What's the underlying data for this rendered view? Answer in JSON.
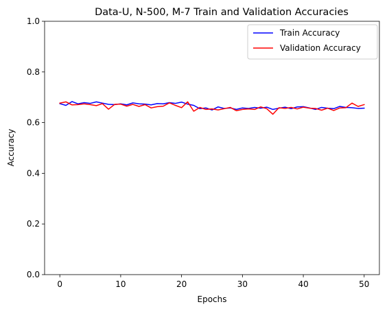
{
  "chart_data": {
    "type": "line",
    "title": "Data-U, N-500, M-7 Train and Validation Accuracies",
    "xlabel": "Epochs",
    "ylabel": "Accuracy",
    "xlim": [
      -2.5,
      52.5
    ],
    "ylim": [
      0.0,
      1.0
    ],
    "xticks": [
      0,
      10,
      20,
      30,
      40,
      50
    ],
    "yticks": [
      0.0,
      0.2,
      0.4,
      0.6,
      0.8,
      1.0
    ],
    "xtick_labels": [
      "0",
      "10",
      "20",
      "30",
      "40",
      "50"
    ],
    "ytick_labels": [
      "0.0",
      "0.2",
      "0.4",
      "0.6",
      "0.8",
      "1.0"
    ],
    "grid": false,
    "legend_position": "top-right",
    "x": [
      0,
      1,
      2,
      3,
      4,
      5,
      6,
      7,
      8,
      9,
      10,
      11,
      12,
      13,
      14,
      15,
      16,
      17,
      18,
      19,
      20,
      21,
      22,
      23,
      24,
      25,
      26,
      27,
      28,
      29,
      30,
      31,
      32,
      33,
      34,
      35,
      36,
      37,
      38,
      39,
      40,
      41,
      42,
      43,
      44,
      45,
      46,
      47,
      48,
      49,
      50
    ],
    "series": [
      {
        "name": "Train Accuracy",
        "color": "#0000ff",
        "values": [
          0.675,
          0.668,
          0.683,
          0.674,
          0.679,
          0.676,
          0.682,
          0.677,
          0.672,
          0.671,
          0.674,
          0.67,
          0.678,
          0.674,
          0.673,
          0.67,
          0.675,
          0.674,
          0.679,
          0.676,
          0.681,
          0.673,
          0.668,
          0.655,
          0.658,
          0.65,
          0.662,
          0.656,
          0.658,
          0.652,
          0.658,
          0.656,
          0.66,
          0.657,
          0.661,
          0.652,
          0.657,
          0.661,
          0.655,
          0.662,
          0.663,
          0.658,
          0.652,
          0.66,
          0.657,
          0.655,
          0.664,
          0.66,
          0.659,
          0.656,
          0.657
        ]
      },
      {
        "name": "Validation Accuracy",
        "color": "#ff0000",
        "values": [
          0.677,
          0.682,
          0.67,
          0.671,
          0.674,
          0.671,
          0.667,
          0.675,
          0.653,
          0.672,
          0.673,
          0.665,
          0.672,
          0.664,
          0.671,
          0.658,
          0.663,
          0.665,
          0.678,
          0.668,
          0.659,
          0.682,
          0.645,
          0.66,
          0.652,
          0.654,
          0.65,
          0.655,
          0.66,
          0.647,
          0.652,
          0.654,
          0.652,
          0.662,
          0.655,
          0.633,
          0.659,
          0.656,
          0.66,
          0.654,
          0.661,
          0.657,
          0.656,
          0.649,
          0.657,
          0.648,
          0.658,
          0.659,
          0.677,
          0.664,
          0.671
        ]
      }
    ]
  }
}
